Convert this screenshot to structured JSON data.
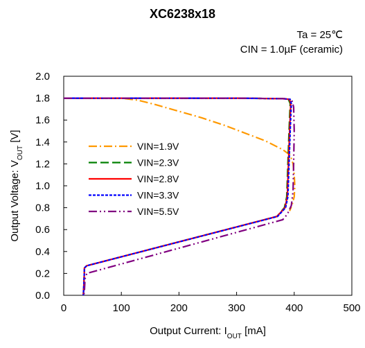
{
  "chart_data": {
    "type": "line",
    "title": "XC6238x18",
    "conditions": [
      "Ta = 25℃",
      "CIN = 1.0µF (ceramic)"
    ],
    "xlabel": "Output Current: I",
    "xlabel_sub": "OUT",
    "xlabel_unit": " [mA]",
    "ylabel": "Output Voltage: V",
    "ylabel_sub": "OUT",
    "ylabel_unit": " [V]",
    "xlim": [
      0,
      500
    ],
    "ylim": [
      0,
      2.0
    ],
    "xticks": [
      0,
      100,
      200,
      300,
      400,
      500
    ],
    "xtick_labels": [
      "0",
      "100",
      "200",
      "300",
      "400",
      "500"
    ],
    "yticks": [
      0,
      0.2,
      0.4,
      0.6,
      0.8,
      1.0,
      1.2,
      1.4,
      1.6,
      1.8,
      2.0
    ],
    "ytick_labels": [
      "0.0",
      "0.2",
      "0.4",
      "0.6",
      "0.8",
      "1.0",
      "1.2",
      "1.4",
      "1.6",
      "1.8",
      "2.0"
    ],
    "grid": false,
    "legend_position": "left-center",
    "series": [
      {
        "name": "VIN=1.9V",
        "color": "#FF9900",
        "dash": "dash-dot",
        "points": [
          [
            0,
            1.8
          ],
          [
            100,
            1.8
          ],
          [
            130,
            1.78
          ],
          [
            160,
            1.74
          ],
          [
            200,
            1.68
          ],
          [
            240,
            1.62
          ],
          [
            280,
            1.55
          ],
          [
            320,
            1.47
          ],
          [
            350,
            1.41
          ],
          [
            380,
            1.33
          ],
          [
            393,
            1.28
          ],
          [
            398,
            1.2
          ],
          [
            400,
            1.1
          ],
          [
            401,
            1.0
          ],
          [
            400,
            0.9
          ],
          [
            396,
            0.82
          ],
          [
            392,
            0.77
          ]
        ]
      },
      {
        "name": "VIN=2.3V",
        "color": "#008000",
        "dash": "dash",
        "points": [
          [
            0,
            1.8
          ],
          [
            300,
            1.8
          ],
          [
            380,
            1.795
          ],
          [
            390,
            1.79
          ],
          [
            393,
            1.75
          ],
          [
            391,
            1.5
          ],
          [
            389,
            1.2
          ],
          [
            387,
            0.9
          ],
          [
            383,
            0.8
          ],
          [
            370,
            0.72
          ],
          [
            40,
            0.27
          ],
          [
            36,
            0.25
          ],
          [
            35,
            0.1
          ],
          [
            34,
            0.0
          ]
        ]
      },
      {
        "name": "VIN=2.8V",
        "color": "#FF0000",
        "dash": "solid",
        "points": [
          [
            0,
            1.8
          ],
          [
            300,
            1.8
          ],
          [
            380,
            1.795
          ],
          [
            392,
            1.79
          ],
          [
            394,
            1.75
          ],
          [
            392,
            1.5
          ],
          [
            390,
            1.2
          ],
          [
            388,
            0.9
          ],
          [
            384,
            0.8
          ],
          [
            370,
            0.72
          ],
          [
            40,
            0.27
          ],
          [
            36,
            0.25
          ],
          [
            35,
            0.1
          ],
          [
            34,
            0.0
          ]
        ]
      },
      {
        "name": "VIN=3.3V",
        "color": "#0000FF",
        "dash": "dot",
        "points": [
          [
            0,
            1.8
          ],
          [
            300,
            1.8
          ],
          [
            380,
            1.795
          ],
          [
            393,
            1.79
          ],
          [
            395,
            1.75
          ],
          [
            393,
            1.5
          ],
          [
            391,
            1.2
          ],
          [
            389,
            0.9
          ],
          [
            385,
            0.8
          ],
          [
            371,
            0.72
          ],
          [
            40,
            0.27
          ],
          [
            36,
            0.25
          ],
          [
            35,
            0.1
          ],
          [
            34,
            0.0
          ]
        ]
      },
      {
        "name": "VIN=5.5V",
        "color": "#800080",
        "dash": "dash-dot-dot",
        "points": [
          [
            0,
            1.8
          ],
          [
            300,
            1.8
          ],
          [
            385,
            1.795
          ],
          [
            396,
            1.78
          ],
          [
            399,
            1.72
          ],
          [
            400,
            1.5
          ],
          [
            399,
            1.2
          ],
          [
            398,
            0.95
          ],
          [
            395,
            0.82
          ],
          [
            388,
            0.74
          ],
          [
            380,
            0.69
          ],
          [
            40,
            0.2
          ],
          [
            37,
            0.15
          ],
          [
            36,
            0.05
          ],
          [
            35,
            0.0
          ]
        ]
      }
    ]
  }
}
